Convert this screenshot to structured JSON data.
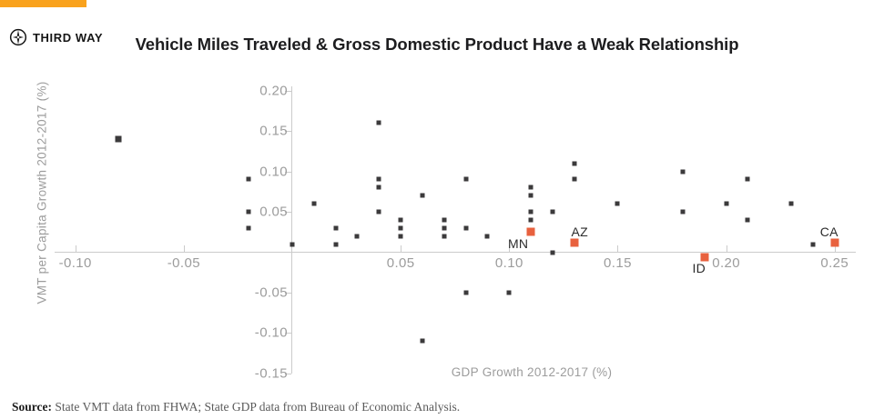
{
  "brand": {
    "name": "THIRD WAY",
    "bar_color": "#F9A21D"
  },
  "source": {
    "label": "Source:",
    "text": " State VMT data from FHWA; State GDP data from Bureau of Economic Analysis."
  },
  "chart_data": {
    "type": "scatter",
    "title": "Vehicle Miles Traveled & Gross Domestic Product Have a Weak Relationship",
    "xlabel": "GDP Growth 2012-2017 (%)",
    "ylabel": "VMT per Capita Growth 2012-2017 (%)",
    "xlim": [
      -0.11,
      0.26
    ],
    "ylim": [
      -0.155,
      0.205
    ],
    "grid": false,
    "legend": "none",
    "colors": {
      "default_marker": "#3b3a3b",
      "highlight_marker": "#e8613e",
      "axis": "#cbcbcb",
      "tick_text": "#9c9c9c"
    },
    "x_ticks": [
      {
        "value": -0.1,
        "label": "-0.10"
      },
      {
        "value": -0.05,
        "label": "-0.05"
      },
      {
        "value": 0.05,
        "label": "0.05"
      },
      {
        "value": 0.1,
        "label": "0.10"
      },
      {
        "value": 0.15,
        "label": "0.15"
      },
      {
        "value": 0.2,
        "label": "0.20"
      },
      {
        "value": 0.25,
        "label": "0.25"
      }
    ],
    "y_ticks": [
      {
        "value": 0.2,
        "label": "0.20"
      },
      {
        "value": 0.15,
        "label": "0.15"
      },
      {
        "value": 0.1,
        "label": "0.10"
      },
      {
        "value": 0.05,
        "label": "0.05"
      },
      {
        "value": -0.05,
        "label": "-0.05"
      },
      {
        "value": -0.1,
        "label": "-0.10"
      },
      {
        "value": -0.15,
        "label": "-0.15"
      }
    ],
    "series": [
      {
        "name": "states",
        "marker": "square",
        "marker_size": 5,
        "points": [
          [
            -0.08,
            0.14,
            7
          ],
          [
            -0.02,
            0.09
          ],
          [
            -0.02,
            0.05
          ],
          [
            -0.02,
            0.03
          ],
          [
            0.0,
            0.01
          ],
          [
            0.01,
            0.06
          ],
          [
            0.02,
            0.03
          ],
          [
            0.02,
            0.01
          ],
          [
            0.03,
            0.02
          ],
          [
            0.04,
            0.16
          ],
          [
            0.04,
            0.09
          ],
          [
            0.04,
            0.08
          ],
          [
            0.04,
            0.05
          ],
          [
            0.05,
            0.04
          ],
          [
            0.05,
            0.03
          ],
          [
            0.05,
            0.02
          ],
          [
            0.06,
            0.07
          ],
          [
            0.06,
            -0.11
          ],
          [
            0.07,
            0.04
          ],
          [
            0.07,
            0.03
          ],
          [
            0.07,
            0.02
          ],
          [
            0.08,
            0.09
          ],
          [
            0.08,
            0.03
          ],
          [
            0.08,
            -0.05
          ],
          [
            0.09,
            0.02
          ],
          [
            0.1,
            -0.05
          ],
          [
            0.11,
            0.08
          ],
          [
            0.11,
            0.07
          ],
          [
            0.11,
            0.05
          ],
          [
            0.11,
            0.04
          ],
          [
            0.12,
            0.05
          ],
          [
            0.12,
            0.0
          ],
          [
            0.13,
            0.11
          ],
          [
            0.13,
            0.09
          ],
          [
            0.15,
            0.06
          ],
          [
            0.18,
            0.1
          ],
          [
            0.18,
            0.05
          ],
          [
            0.2,
            0.06
          ],
          [
            0.21,
            0.09
          ],
          [
            0.21,
            0.04
          ],
          [
            0.23,
            0.06
          ],
          [
            0.24,
            0.01
          ]
        ]
      },
      {
        "name": "highlighted-states",
        "marker": "square",
        "marker_size": 9,
        "points": [
          {
            "label": "MN",
            "x": 0.11,
            "y": 0.025,
            "label_dx": -14,
            "label_dy": 13
          },
          {
            "label": "AZ",
            "x": 0.13,
            "y": 0.012,
            "label_dx": 6,
            "label_dy": -12
          },
          {
            "label": "ID",
            "x": 0.19,
            "y": -0.006,
            "label_dx": -6,
            "label_dy": 12
          },
          {
            "label": "CA",
            "x": 0.25,
            "y": 0.012,
            "label_dx": -6,
            "label_dy": -12
          }
        ]
      }
    ]
  }
}
